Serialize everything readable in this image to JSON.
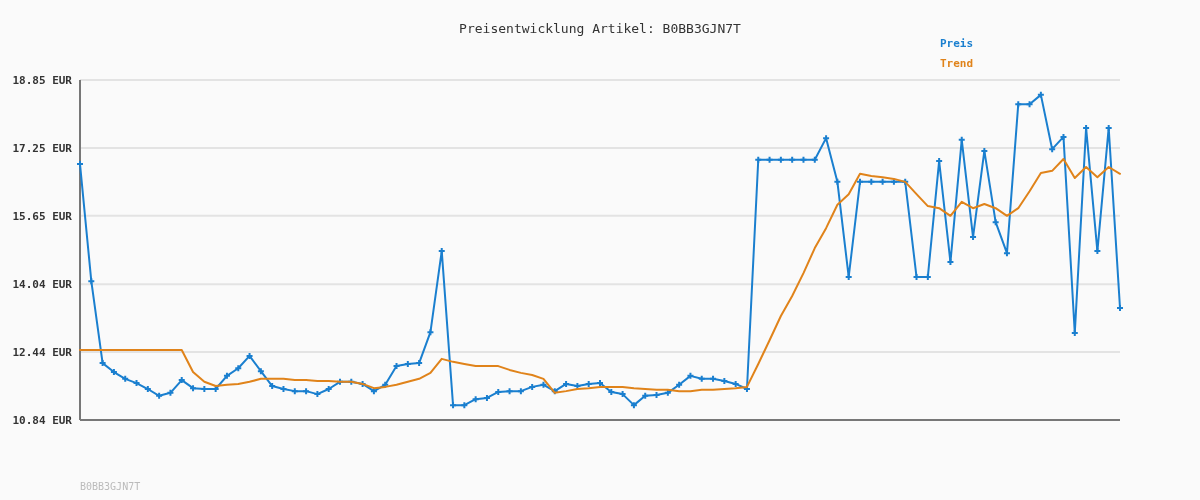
{
  "chart_data": {
    "type": "line",
    "title": "Preisentwicklung Artikel: B0BB3GJN7T",
    "categories": [
      null,
      null,
      null,
      null,
      null,
      null,
      null,
      null,
      null,
      null,
      null,
      null,
      null,
      null,
      null,
      null,
      null,
      null,
      null,
      null,
      null,
      null,
      null,
      null,
      null,
      null,
      null,
      null,
      null,
      null,
      null,
      null,
      null,
      null,
      null,
      null,
      null,
      null,
      null,
      null,
      null,
      null,
      null,
      null,
      null,
      null,
      null,
      null,
      null,
      null,
      null,
      null,
      null,
      null,
      null,
      null,
      null,
      null,
      null,
      null,
      null,
      null,
      null,
      null,
      null,
      null,
      null,
      null,
      null,
      null,
      null,
      null,
      null,
      null,
      null,
      null,
      null,
      null,
      null,
      null,
      null,
      null,
      null,
      null,
      null,
      null,
      null,
      null,
      null,
      null,
      null,
      null,
      null
    ],
    "series": [
      {
        "name": "Preis",
        "color": "#1a7fcf",
        "marker": "cross",
        "values": [
          16.87,
          14.11,
          12.18,
          11.97,
          11.81,
          11.71,
          11.57,
          11.41,
          11.48,
          11.78,
          11.59,
          11.57,
          11.57,
          11.88,
          12.06,
          12.35,
          11.99,
          11.64,
          11.57,
          11.52,
          11.52,
          11.45,
          11.57,
          11.74,
          11.74,
          11.69,
          11.52,
          11.67,
          12.11,
          12.16,
          12.18,
          12.91,
          14.82,
          11.19,
          11.19,
          11.33,
          11.36,
          11.5,
          11.52,
          11.52,
          11.62,
          11.67,
          11.52,
          11.69,
          11.64,
          11.69,
          11.71,
          11.5,
          11.45,
          11.19,
          11.41,
          11.43,
          11.48,
          11.67,
          11.88,
          11.81,
          11.81,
          11.76,
          11.69,
          11.57,
          16.97,
          16.97,
          16.97,
          16.97,
          16.97,
          16.97,
          17.48,
          16.45,
          14.21,
          16.45,
          16.45,
          16.45,
          16.45,
          16.45,
          14.21,
          14.21,
          16.94,
          14.56,
          17.44,
          15.15,
          17.18,
          15.5,
          14.77,
          18.28,
          18.28,
          18.5,
          17.22,
          17.51,
          12.89,
          17.72,
          14.82,
          17.72,
          13.48
        ]
      },
      {
        "name": "Trend",
        "color": "#e0831a",
        "marker": "none",
        "values": [
          12.49,
          12.49,
          12.49,
          12.49,
          12.49,
          12.49,
          12.49,
          12.49,
          12.49,
          12.49,
          11.97,
          11.74,
          11.64,
          11.67,
          11.69,
          11.74,
          11.81,
          11.81,
          11.81,
          11.78,
          11.78,
          11.76,
          11.76,
          11.74,
          11.74,
          11.69,
          11.59,
          11.62,
          11.67,
          11.74,
          11.81,
          11.95,
          12.28,
          12.21,
          12.16,
          12.11,
          12.11,
          12.11,
          12.02,
          11.95,
          11.9,
          11.81,
          11.48,
          11.52,
          11.57,
          11.59,
          11.62,
          11.62,
          11.62,
          11.59,
          11.57,
          11.55,
          11.55,
          11.52,
          11.52,
          11.55,
          11.55,
          11.57,
          11.59,
          11.62,
          12.16,
          12.72,
          13.29,
          13.76,
          14.3,
          14.89,
          15.36,
          15.91,
          16.16,
          16.64,
          16.59,
          16.56,
          16.52,
          16.45,
          16.16,
          15.88,
          15.83,
          15.65,
          15.98,
          15.83,
          15.93,
          15.83,
          15.65,
          15.83,
          16.23,
          16.66,
          16.71,
          16.99,
          16.54,
          16.8,
          16.56,
          16.8,
          16.64
        ]
      }
    ],
    "ylim": [
      10.84,
      18.85
    ],
    "yticks": [
      {
        "value": 10.84,
        "label": "10.84 EUR"
      },
      {
        "value": 12.44,
        "label": "12.44 EUR"
      },
      {
        "value": 14.04,
        "label": "14.04 EUR"
      },
      {
        "value": 15.65,
        "label": "15.65 EUR"
      },
      {
        "value": 17.25,
        "label": "17.25 EUR"
      },
      {
        "value": 18.85,
        "label": "18.85 EUR"
      }
    ],
    "grid": "y",
    "legend": "top right",
    "tick_labels": "y",
    "line_style": "solid",
    "annotations": [
      "B0BB3GJN7T"
    ]
  }
}
